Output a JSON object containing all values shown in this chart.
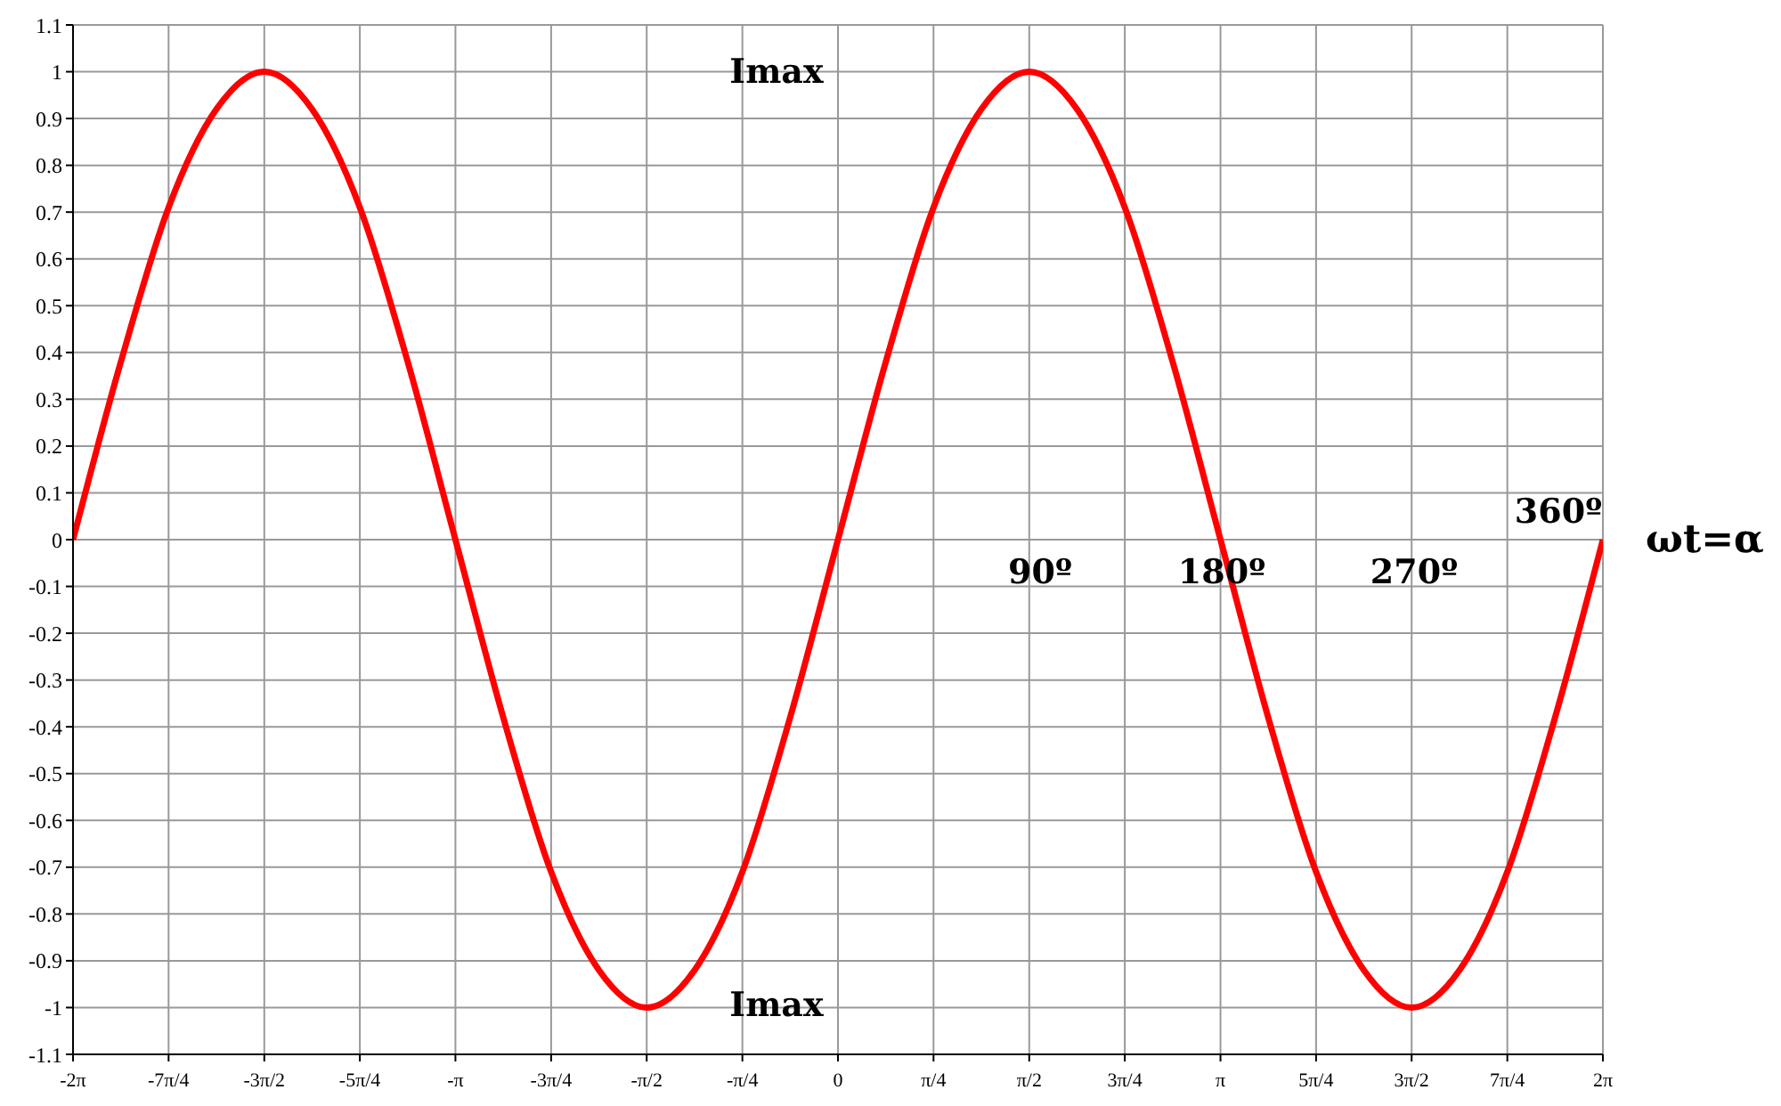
{
  "chart_data": {
    "type": "line",
    "xlabel": "ωt=α",
    "x": [
      -6.283,
      -5.89,
      -5.498,
      -5.105,
      -4.712,
      -4.32,
      -3.927,
      -3.534,
      -3.142,
      -2.749,
      -2.356,
      -1.963,
      -1.571,
      -1.178,
      -0.785,
      -0.393,
      0,
      0.393,
      0.785,
      1.178,
      1.571,
      1.963,
      2.356,
      2.749,
      3.142,
      3.534,
      3.927,
      4.32,
      4.712,
      5.105,
      5.498,
      5.89,
      6.283
    ],
    "series": [
      {
        "color": "#ff0000",
        "values": [
          0,
          0.38,
          0.71,
          0.92,
          1,
          0.92,
          0.71,
          0.38,
          0,
          -0.38,
          -0.71,
          -0.92,
          -1,
          -0.92,
          -0.71,
          -0.38,
          0,
          0.38,
          0.71,
          0.92,
          1,
          0.92,
          0.71,
          0.38,
          0,
          -0.38,
          -0.71,
          -0.92,
          -1,
          -0.92,
          -0.71,
          -0.38,
          0
        ]
      }
    ],
    "xlim": [
      -6.283,
      6.283
    ],
    "xticks": [
      {
        "value": -6.283,
        "label": "-2π"
      },
      {
        "value": -5.498,
        "label": "-7π/4"
      },
      {
        "value": -4.712,
        "label": "-3π/2"
      },
      {
        "value": -3.927,
        "label": "-5π/4"
      },
      {
        "value": -3.142,
        "label": "-π"
      },
      {
        "value": -2.356,
        "label": "-3π/4"
      },
      {
        "value": -1.571,
        "label": "-π/2"
      },
      {
        "value": -0.785,
        "label": "-π/4"
      },
      0,
      {
        "value": 0.785,
        "label": "π/4"
      },
      {
        "value": 1.571,
        "label": "π/2"
      },
      {
        "value": 2.356,
        "label": "3π/4"
      },
      {
        "value": 3.142,
        "label": "π"
      },
      {
        "value": 3.927,
        "label": "5π/4"
      },
      {
        "value": 4.712,
        "label": "3π/2"
      },
      {
        "value": 5.498,
        "label": "7π/4"
      },
      {
        "value": 6.283,
        "label": "2π"
      }
    ],
    "ylim": [
      -1.1,
      1.1
    ],
    "yticks": [
      -1.1,
      -1,
      -0.9,
      -0.8,
      -0.7,
      -0.6,
      -0.5,
      -0.4,
      -0.3,
      -0.2,
      -0.1,
      0,
      0.1,
      0.2,
      0.3,
      0.4,
      0.5,
      0.6,
      0.7,
      0.8,
      0.9,
      1,
      1.1
    ],
    "grid": true,
    "marker": "none",
    "line_style": "solid",
    "annotations": [
      "Imax",
      "Imax",
      "90º",
      "180º",
      "270º",
      "360º"
    ]
  }
}
